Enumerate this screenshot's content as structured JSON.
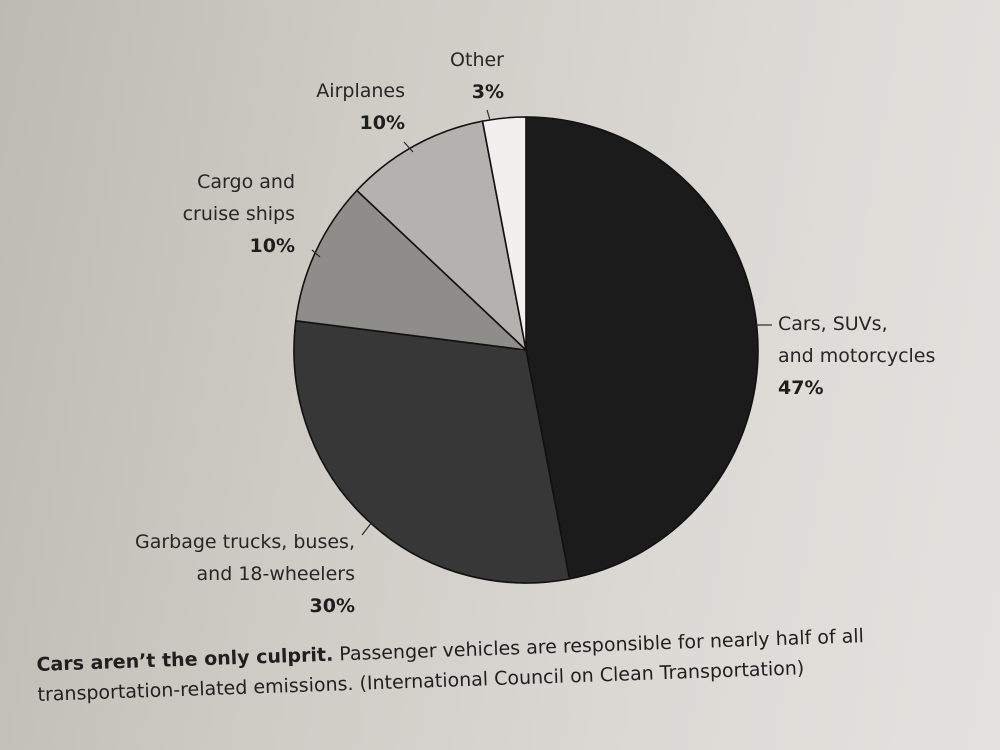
{
  "chart_data": {
    "type": "pie",
    "slices": [
      {
        "key": "cars",
        "label_lines": [
          "Cars, SUVs,",
          "and motorcycles"
        ],
        "value_label": "47%",
        "value": 47,
        "color": "#1b1b1b"
      },
      {
        "key": "trucks",
        "label_lines": [
          "Garbage trucks, buses,",
          "and 18-wheelers"
        ],
        "value_label": "30%",
        "value": 30,
        "color": "#373737"
      },
      {
        "key": "ships",
        "label_lines": [
          "Cargo and",
          "cruise ships"
        ],
        "value_label": "10%",
        "value": 10,
        "color": "#8f8d89"
      },
      {
        "key": "airplanes",
        "label_lines": [
          "Airplanes"
        ],
        "value_label": "10%",
        "value": 10,
        "color": "#b4b2ae"
      },
      {
        "key": "other",
        "label_lines": [
          "Other"
        ],
        "value_label": "3%",
        "value": 3,
        "color": "#f1f0ee"
      }
    ]
  },
  "caption": {
    "lead": "Cars aren’t the only culprit.",
    "text": "Passenger vehicles are responsible for nearly half of all transportation-related emissions. (International Council on Clean Transportation)"
  }
}
